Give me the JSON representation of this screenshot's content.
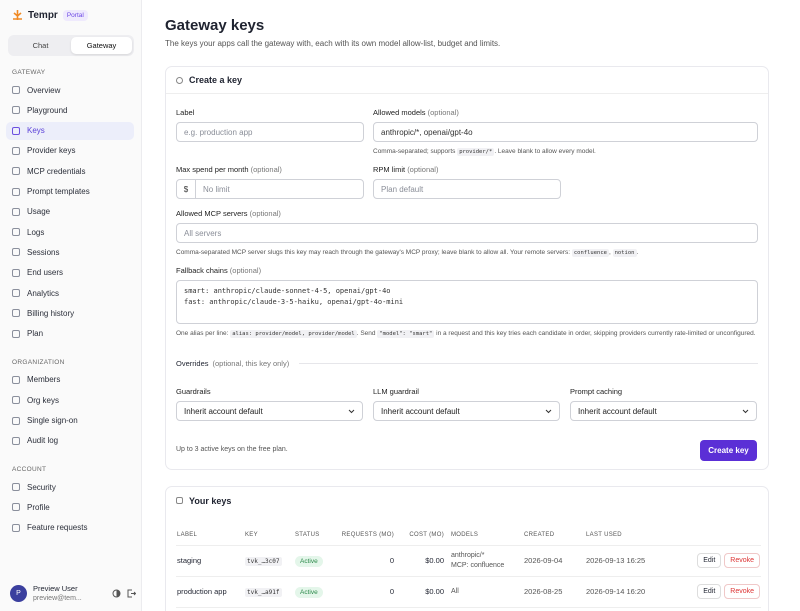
{
  "sidebar": {
    "brand": "Tempr",
    "badge": "Portal",
    "tabs": [
      "Chat",
      "Gateway"
    ],
    "sections": [
      {
        "title": "GATEWAY",
        "items": [
          "Overview",
          "Playground",
          "Keys",
          "Provider keys",
          "MCP credentials",
          "Prompt templates",
          "Usage",
          "Logs",
          "Sessions",
          "End users",
          "Analytics",
          "Billing history",
          "Plan"
        ]
      },
      {
        "title": "ORGANIZATION",
        "items": [
          "Members",
          "Org keys",
          "Single sign-on",
          "Audit log"
        ]
      },
      {
        "title": "ACCOUNT",
        "items": [
          "Security",
          "Profile",
          "Feature requests"
        ]
      }
    ],
    "user": {
      "initial": "P",
      "name": "Preview User",
      "email": "preview@tem..."
    }
  },
  "header": {
    "title": "Gateway keys",
    "subtitle": "The keys your apps call the gateway with, each with its own model allow-list, budget and limits."
  },
  "create_form": {
    "title": "Create a key",
    "label_field": {
      "label": "Label",
      "placeholder": "e.g. production app"
    },
    "models_field": {
      "label": "Allowed models",
      "optional": "(optional)",
      "value": "anthropic/*, openai/gpt-4o",
      "help": [
        "Comma-separated; supports ",
        "provider/*",
        ". Leave blank to allow every model."
      ]
    },
    "spend_field": {
      "label": "Max spend per month",
      "optional": "(optional)",
      "prefix": "$",
      "placeholder": "No limit"
    },
    "rpm_field": {
      "label": "RPM limit",
      "optional": "(optional)",
      "placeholder": "Plan default"
    },
    "mcp_field": {
      "label": "Allowed MCP servers",
      "optional": "(optional)",
      "placeholder": "All servers",
      "help": [
        "Comma-separated MCP server slugs this key may reach through the gateway's MCP proxy; leave blank to allow all. Your remote servers: ",
        "confluence",
        ", ",
        "notion",
        "."
      ]
    },
    "fallback_field": {
      "label": "Fallback chains",
      "optional": "(optional)",
      "value": "smart: anthropic/claude-sonnet-4-5, openai/gpt-4o\nfast: anthropic/claude-3-5-haiku, openai/gpt-4o-mini",
      "help": [
        "One alias per line: ",
        "alias: provider/model, provider/model",
        ". Send ",
        "\"model\": \"smart\"",
        " in a request and this key tries each candidate in order, skipping providers currently rate-limited or unconfigured."
      ]
    },
    "overrides": {
      "label": "Overrides",
      "note": "(optional, this key only)"
    },
    "selects": [
      {
        "label": "Guardrails",
        "value": "Inherit account default"
      },
      {
        "label": "LLM guardrail",
        "value": "Inherit account default"
      },
      {
        "label": "Prompt caching",
        "value": "Inherit account default"
      }
    ],
    "footer_note": "Up to 3 active keys on the free plan.",
    "submit": "Create key"
  },
  "keys_table": {
    "title": "Your keys",
    "columns": [
      "LABEL",
      "KEY",
      "STATUS",
      "REQUESTS (MO)",
      "COST (MO)",
      "MODELS",
      "CREATED",
      "LAST USED"
    ],
    "rows": [
      {
        "label": "staging",
        "key": "tvk_…3c07",
        "status": "Active",
        "requests": 0,
        "cost": "$0.00",
        "models": [
          "anthropic/*",
          "MCP: confluence"
        ],
        "created": "2026-09-04",
        "last_used": "2026-09-13 16:25"
      },
      {
        "label": "production app",
        "key": "tvk_…a91f",
        "status": "Active",
        "requests": 0,
        "cost": "$0.00",
        "models": [
          "All"
        ],
        "created": "2026-08-25",
        "last_used": "2026-09-14 16:20"
      }
    ],
    "actions": [
      "Edit",
      "Revoke"
    ]
  }
}
